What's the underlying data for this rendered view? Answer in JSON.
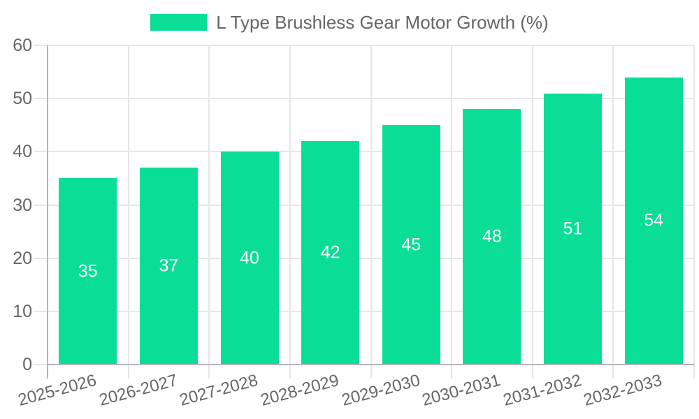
{
  "colors": {
    "bar": "#0ade96",
    "grid": "#e6e6e6",
    "axis_border": "#b3b3b3",
    "tick_text": "#666666",
    "legend_text": "#666666",
    "value_label_text": "#ffffff",
    "background": "#ffffff"
  },
  "legend": {
    "position": "top",
    "items": [
      {
        "label": "L Type Brushless Gear Motor Growth (%)",
        "swatch_color": "#0ade96"
      }
    ]
  },
  "chart_data": {
    "type": "bar",
    "title": "L Type Brushless Gear Motor Growth (%)",
    "series": [
      {
        "name": "L Type Brushless Gear Motor Growth (%)",
        "values": [
          35,
          37,
          40,
          42,
          45,
          48,
          51,
          54
        ]
      }
    ],
    "categories": [
      "2025-2026",
      "2026-2027",
      "2027-2028",
      "2028-2029",
      "2029-2030",
      "2030-2031",
      "2031-2032",
      "2032-2033"
    ],
    "values": [
      35,
      37,
      40,
      42,
      45,
      48,
      51,
      54
    ],
    "value_labels": [
      "35",
      "37",
      "40",
      "42",
      "45",
      "48",
      "51",
      "54"
    ],
    "xlabel": "",
    "ylabel": "",
    "ylim": [
      0,
      60
    ],
    "yticks": [
      0,
      10,
      20,
      30,
      40,
      50,
      60
    ],
    "ytick_labels": [
      "0",
      "10",
      "20",
      "30",
      "40",
      "50",
      "60"
    ],
    "grid": true,
    "legend_position": "top",
    "value_label_position": "inside-center",
    "x_tick_rotation_deg": -15
  }
}
